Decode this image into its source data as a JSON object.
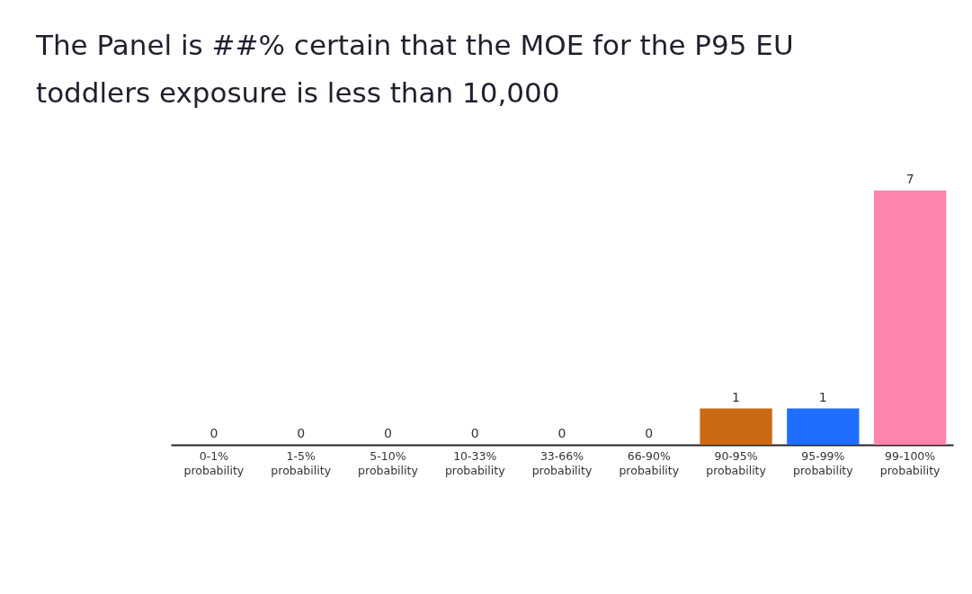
{
  "chart_data": {
    "type": "bar",
    "title": "The Panel is ##% certain that the MOE for the P95 EU toddlers exposure is less than 10,000",
    "categories": [
      "0-1% probability",
      "1-5% probability",
      "5-10% probability",
      "10-33% probability",
      "33-66% probability",
      "66-90% probability",
      "90-95% probability",
      "95-99% probability",
      "99-100% probability"
    ],
    "values": [
      0,
      0,
      0,
      0,
      0,
      0,
      1,
      1,
      7
    ],
    "colors": [
      null,
      null,
      null,
      null,
      null,
      null,
      "#cc6a13",
      "#1f6fff",
      "#ff85ad"
    ],
    "data_labels": true
  }
}
